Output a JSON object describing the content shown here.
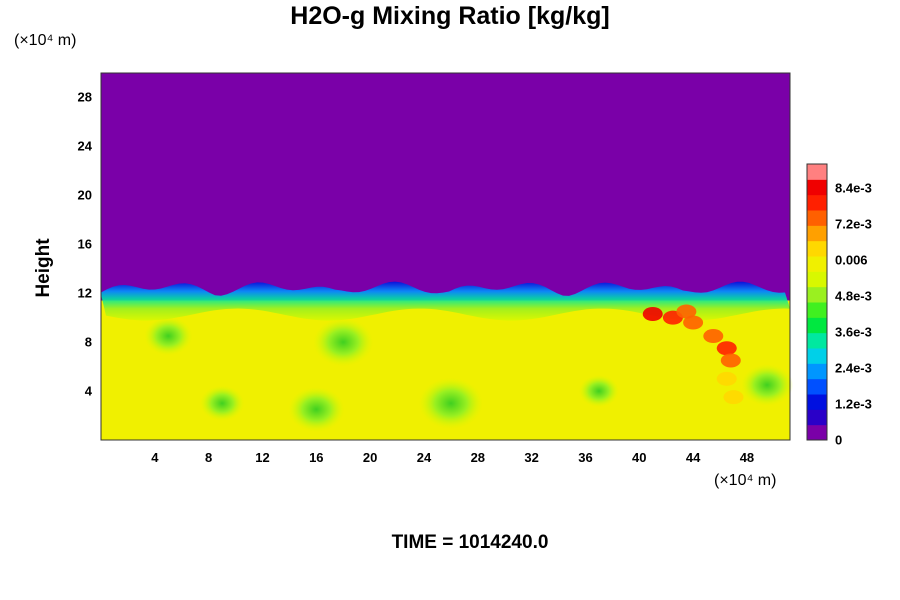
{
  "chart_data": {
    "type": "heatmap",
    "title": "H2O-g Mixing Ratio [kg/kg]",
    "ylabel": "Height",
    "x_unit": "(×10⁴ m)",
    "y_unit": "(×10⁴ m)",
    "footer": "TIME = 1014240.0",
    "xlim": [
      0,
      51.2
    ],
    "ylim": [
      0,
      30
    ],
    "x_ticks": [
      "4",
      "8",
      "12",
      "16",
      "20",
      "24",
      "28",
      "32",
      "36",
      "40",
      "44",
      "48"
    ],
    "y_ticks": [
      "4",
      "8",
      "12",
      "16",
      "20",
      "24",
      "28"
    ],
    "colorbar": {
      "range": [
        0,
        0.0092
      ],
      "ticks": [
        {
          "label": "0",
          "value": 0
        },
        {
          "label": "1.2e-3",
          "value": 0.0012
        },
        {
          "label": "2.4e-3",
          "value": 0.0024
        },
        {
          "label": "3.6e-3",
          "value": 0.0036
        },
        {
          "label": "4.8e-3",
          "value": 0.0048
        },
        {
          "label": "0.006",
          "value": 0.006
        },
        {
          "label": "7.2e-3",
          "value": 0.0072
        },
        {
          "label": "8.4e-3",
          "value": 0.0084
        }
      ],
      "colors": [
        "#7a00a8",
        "#2a00c8",
        "#0010e0",
        "#0050ff",
        "#0096ff",
        "#00d0e8",
        "#00e8a0",
        "#00e840",
        "#40f020",
        "#9af020",
        "#d8f800",
        "#f0f000",
        "#ffd800",
        "#ffa000",
        "#ff6000",
        "#ff2000",
        "#f00000",
        "#ff8080"
      ]
    },
    "fields": {
      "upper_value": 0,
      "lower_value": 0.0058,
      "boundary_height": 11.4,
      "moist_patch_x_range": [
        40,
        47
      ],
      "moist_patch_max": 0.0084
    }
  }
}
